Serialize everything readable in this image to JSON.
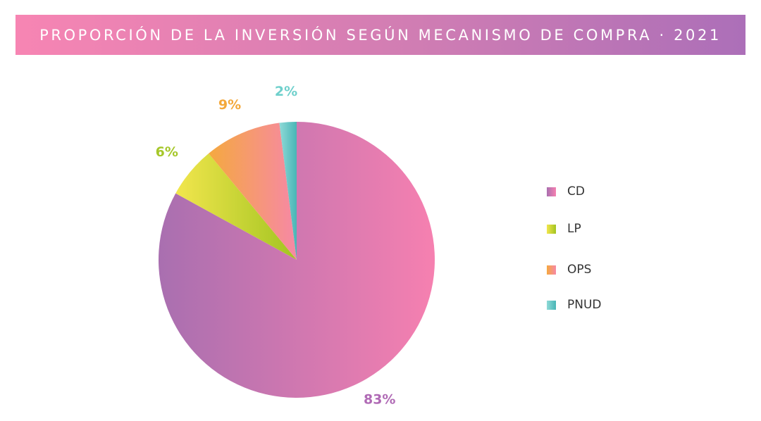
{
  "header": {
    "title": "PROPORCIÓN DE LA INVERSIÓN SEGÚN MECANISMO DE COMPRA · 2021"
  },
  "chart_data": {
    "type": "pie",
    "title": "PROPORCIÓN DE LA INVERSIÓN SEGÚN MECANISMO DE COMPRA · 2021",
    "categories": [
      "CD",
      "LP",
      "OPS",
      "PNUD"
    ],
    "values": [
      83,
      6,
      9,
      2
    ],
    "labels": [
      "83%",
      "6%",
      "9%",
      "2%"
    ],
    "colors": {
      "CD": [
        "#a96fb0",
        "#f680b0"
      ],
      "LP": [
        "#f2e64d",
        "#a2c421"
      ],
      "OPS": [
        "#f5a93f",
        "#f688a6"
      ],
      "PNUD": [
        "#8fdad7",
        "#48b5b6"
      ]
    },
    "label_colors": {
      "CD": "#b06ab5",
      "LP": "#a6c72a",
      "OPS": "#f3a83b",
      "PNUD": "#6fd0cc"
    },
    "legend_position": "right",
    "start_angle": "12 o'clock",
    "direction": "clockwise"
  },
  "legend": {
    "items": [
      {
        "label": "CD"
      },
      {
        "label": "LP"
      },
      {
        "label": "OPS"
      },
      {
        "label": "PNUD"
      }
    ]
  }
}
